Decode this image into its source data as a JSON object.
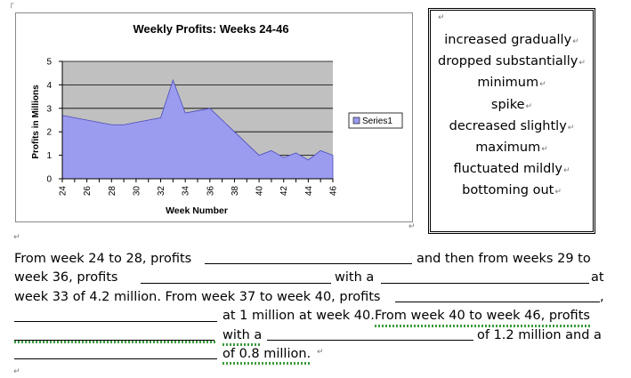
{
  "chart_data": {
    "type": "area",
    "title": "Weekly Profits: Weeks 24-46",
    "xlabel": "Week Number",
    "ylabel": "Profits in Millions",
    "ylim": [
      0,
      5
    ],
    "yticks": [
      "0",
      "1",
      "2",
      "3",
      "4",
      "5"
    ],
    "xticks": [
      "24",
      "26",
      "28",
      "30",
      "32",
      "34",
      "36",
      "38",
      "40",
      "42",
      "44",
      "46"
    ],
    "legend": "right",
    "series": [
      {
        "name": "Series1",
        "x": [
          24,
          25,
          26,
          27,
          28,
          29,
          30,
          31,
          32,
          33,
          34,
          35,
          36,
          37,
          38,
          39,
          40,
          41,
          42,
          43,
          44,
          45,
          46
        ],
        "values": [
          2.7,
          2.6,
          2.5,
          2.4,
          2.3,
          2.3,
          2.4,
          2.5,
          2.6,
          4.2,
          2.8,
          2.9,
          3.0,
          2.5,
          2.0,
          1.5,
          1.0,
          1.2,
          0.9,
          1.1,
          0.8,
          1.2,
          1.0
        ]
      }
    ],
    "colors": {
      "area": "#9b9bf0",
      "plot_bg": "#c0c0c0",
      "line": "#4b4bbd"
    }
  },
  "word_box": {
    "items": [
      "increased gradually",
      "dropped substantially",
      "minimum",
      "spike",
      "decreased slightly",
      "maximum",
      "fluctuated mildly",
      "bottoming out"
    ]
  },
  "paragraph": {
    "l1a": "From week 24 to 28, profits",
    "l1b": "and then from weeks 29 to",
    "l2a": "week 36, profits",
    "l2b": "with a",
    "l2c": "at",
    "l3a": "week 33 of 4.2 million. From week 37 to week 40, profits",
    "l3b": ",",
    "l4a": "at 1 million at week 40.",
    "l4b": "From week 40 to week 46, profits",
    "l5a": "with a",
    "l5b": "of 1.2 million and a",
    "l6a": "of 0.8 million."
  }
}
